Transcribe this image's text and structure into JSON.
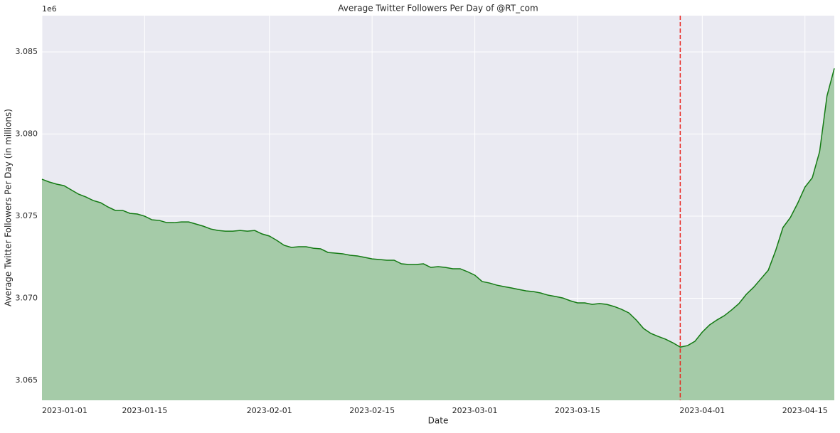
{
  "chart_data": {
    "type": "area",
    "title": "Average Twitter Followers Per Day of @RT_com",
    "x_label": "Date",
    "y_label": "Average Twitter Followers Per Day (in millions)",
    "y_offset_label": "1e6",
    "x": [
      "2023-01-01",
      "2023-01-02",
      "2023-01-03",
      "2023-01-04",
      "2023-01-05",
      "2023-01-06",
      "2023-01-07",
      "2023-01-08",
      "2023-01-09",
      "2023-01-10",
      "2023-01-11",
      "2023-01-12",
      "2023-01-13",
      "2023-01-14",
      "2023-01-15",
      "2023-01-16",
      "2023-01-17",
      "2023-01-18",
      "2023-01-19",
      "2023-01-20",
      "2023-01-21",
      "2023-01-22",
      "2023-01-23",
      "2023-01-24",
      "2023-01-25",
      "2023-01-26",
      "2023-01-27",
      "2023-01-28",
      "2023-01-29",
      "2023-01-30",
      "2023-01-31",
      "2023-02-01",
      "2023-02-02",
      "2023-02-03",
      "2023-02-04",
      "2023-02-05",
      "2023-02-06",
      "2023-02-07",
      "2023-02-08",
      "2023-02-09",
      "2023-02-10",
      "2023-02-11",
      "2023-02-12",
      "2023-02-13",
      "2023-02-14",
      "2023-02-15",
      "2023-02-16",
      "2023-02-17",
      "2023-02-18",
      "2023-02-19",
      "2023-02-20",
      "2023-02-21",
      "2023-02-22",
      "2023-02-23",
      "2023-02-24",
      "2023-02-25",
      "2023-02-26",
      "2023-02-27",
      "2023-02-28",
      "2023-03-01",
      "2023-03-02",
      "2023-03-03",
      "2023-03-04",
      "2023-03-05",
      "2023-03-06",
      "2023-03-07",
      "2023-03-08",
      "2023-03-09",
      "2023-03-10",
      "2023-03-11",
      "2023-03-12",
      "2023-03-13",
      "2023-03-14",
      "2023-03-15",
      "2023-03-16",
      "2023-03-17",
      "2023-03-18",
      "2023-03-19",
      "2023-03-20",
      "2023-03-21",
      "2023-03-22",
      "2023-03-23",
      "2023-03-24",
      "2023-03-25",
      "2023-03-26",
      "2023-03-27",
      "2023-03-28",
      "2023-03-29",
      "2023-03-30",
      "2023-03-31",
      "2023-04-01",
      "2023-04-02",
      "2023-04-03",
      "2023-04-04",
      "2023-04-05",
      "2023-04-06",
      "2023-04-07",
      "2023-04-08",
      "2023-04-09",
      "2023-04-10",
      "2023-04-11",
      "2023-04-12",
      "2023-04-13",
      "2023-04-14",
      "2023-04-15",
      "2023-04-16",
      "2023-04-17",
      "2023-04-18",
      "2023-04-19"
    ],
    "values": [
      3.07725,
      3.07708,
      3.07695,
      3.07686,
      3.0766,
      3.07634,
      3.07617,
      3.07595,
      3.07582,
      3.07556,
      3.07535,
      3.07535,
      3.07517,
      3.07513,
      3.075,
      3.07478,
      3.07474,
      3.07461,
      3.07461,
      3.07465,
      3.07465,
      3.07452,
      3.07439,
      3.07422,
      3.07413,
      3.07409,
      3.07409,
      3.07413,
      3.07409,
      3.07413,
      3.07392,
      3.07379,
      3.07353,
      3.07323,
      3.0731,
      3.07314,
      3.07314,
      3.07305,
      3.07301,
      3.07279,
      3.07275,
      3.07271,
      3.07262,
      3.07258,
      3.07249,
      3.0724,
      3.07236,
      3.07232,
      3.07232,
      3.0721,
      3.07206,
      3.07206,
      3.0721,
      3.07188,
      3.07193,
      3.07188,
      3.0718,
      3.0718,
      3.07162,
      3.07141,
      3.07102,
      3.07093,
      3.0708,
      3.07071,
      3.07063,
      3.07054,
      3.07045,
      3.07041,
      3.07032,
      3.07019,
      3.07011,
      3.07002,
      3.06985,
      3.06972,
      3.06972,
      3.06963,
      3.06968,
      3.06963,
      3.0695,
      3.06933,
      3.06911,
      3.06868,
      3.06816,
      3.06786,
      3.06768,
      3.06751,
      3.06729,
      3.06703,
      3.06712,
      3.06738,
      3.06794,
      3.06838,
      3.06868,
      3.06894,
      3.06929,
      3.06968,
      3.07024,
      3.07067,
      3.07119,
      3.07171,
      3.0729,
      3.07431,
      3.07491,
      3.07578,
      3.07677,
      3.07734,
      3.07894,
      3.08232,
      3.084
    ],
    "color": "#137a13",
    "fill_color": "#a5cba8",
    "xlim": [
      "2023-01-01",
      "2023-04-19"
    ],
    "xticks": [
      "2023-01-01",
      "2023-01-15",
      "2023-02-01",
      "2023-02-15",
      "2023-03-01",
      "2023-03-15",
      "2023-04-01",
      "2023-04-15"
    ],
    "ylim": [
      3.06379,
      3.08721
    ],
    "yticks": [
      3.065,
      {
        "value": 3.07,
        "label": "3.070"
      },
      3.075,
      {
        "value": 3.08,
        "label": "3.080"
      },
      3.085
    ],
    "vline": {
      "x": "2023-03-29",
      "color": "#e8261f"
    },
    "grid": true
  }
}
